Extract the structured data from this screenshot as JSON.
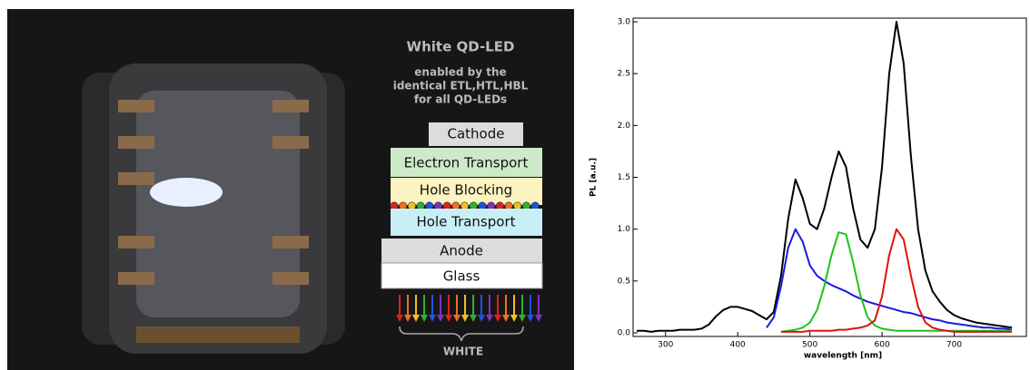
{
  "diagram": {
    "title": "White QD-LED",
    "subtitle_lines": [
      "enabled by the",
      "identical ETL,HTL,HBL",
      "for all QD-LEDs"
    ],
    "layers": [
      "Cathode",
      "Electron Transport",
      "Hole Blocking",
      "Hole Transport",
      "Anode",
      "Glass"
    ],
    "output": "WHITE"
  },
  "chart_data": {
    "type": "line",
    "xlabel": "wavelength [nm]",
    "ylabel": "PL [a.u.]",
    "x": [
      260,
      270,
      280,
      290,
      300,
      310,
      320,
      330,
      340,
      350,
      360,
      370,
      380,
      390,
      400,
      410,
      420,
      430,
      440,
      450,
      460,
      470,
      480,
      490,
      500,
      510,
      520,
      530,
      540,
      550,
      560,
      570,
      580,
      590,
      600,
      610,
      620,
      630,
      640,
      650,
      660,
      670,
      680,
      690,
      700,
      710,
      720,
      730,
      740,
      750,
      760,
      770,
      780
    ],
    "series": [
      {
        "color": "#000000",
        "values": [
          0.02,
          0.02,
          0.01,
          0.02,
          0.02,
          0.02,
          0.03,
          0.03,
          0.03,
          0.04,
          0.08,
          0.16,
          0.22,
          0.25,
          0.25,
          0.23,
          0.21,
          0.17,
          0.13,
          0.2,
          0.55,
          1.1,
          1.48,
          1.3,
          1.05,
          1.0,
          1.2,
          1.5,
          1.75,
          1.6,
          1.2,
          0.9,
          0.82,
          1.0,
          1.6,
          2.5,
          3.0,
          2.6,
          1.7,
          1.0,
          0.6,
          0.4,
          0.3,
          0.22,
          0.17,
          0.14,
          0.12,
          0.1,
          0.09,
          0.08,
          0.07,
          0.06,
          0.05
        ]
      },
      {
        "color": "#1a1adc",
        "values": [
          null,
          null,
          null,
          null,
          null,
          null,
          null,
          null,
          null,
          null,
          null,
          null,
          null,
          null,
          null,
          null,
          null,
          null,
          0.05,
          0.15,
          0.45,
          0.82,
          1.0,
          0.88,
          0.65,
          0.55,
          0.5,
          0.46,
          0.43,
          0.4,
          0.36,
          0.33,
          0.3,
          0.28,
          0.26,
          0.24,
          0.22,
          0.2,
          0.19,
          0.17,
          0.15,
          0.13,
          0.12,
          0.1,
          0.09,
          0.08,
          0.07,
          0.06,
          0.05,
          0.05,
          0.04,
          0.04,
          0.03
        ]
      },
      {
        "color": "#1cc41c",
        "values": [
          null,
          null,
          null,
          null,
          null,
          null,
          null,
          null,
          null,
          null,
          null,
          null,
          null,
          null,
          null,
          null,
          null,
          null,
          null,
          null,
          0.01,
          0.02,
          0.03,
          0.05,
          0.1,
          0.22,
          0.45,
          0.75,
          0.97,
          0.95,
          0.68,
          0.36,
          0.15,
          0.07,
          0.04,
          0.03,
          0.02,
          0.02,
          0.02,
          0.02,
          0.02,
          0.02,
          0.02,
          0.02,
          0.02,
          0.02,
          0.02,
          0.02,
          0.02,
          0.02,
          0.02,
          0.02,
          0.02
        ]
      },
      {
        "color": "#e01010",
        "values": [
          null,
          null,
          null,
          null,
          null,
          null,
          null,
          null,
          null,
          null,
          null,
          null,
          null,
          null,
          null,
          null,
          null,
          null,
          null,
          null,
          0.01,
          0.01,
          0.01,
          0.01,
          0.02,
          0.02,
          0.02,
          0.02,
          0.03,
          0.03,
          0.04,
          0.05,
          0.07,
          0.12,
          0.35,
          0.75,
          1.0,
          0.9,
          0.55,
          0.25,
          0.1,
          0.05,
          0.03,
          0.02,
          0.01,
          0.01,
          0.01,
          0.01,
          0.01,
          0.01,
          0.01,
          0.01,
          0.01
        ]
      }
    ],
    "xlim": [
      255,
      800
    ],
    "ylim": [
      0,
      3.0
    ],
    "xticks": [
      300,
      400,
      500,
      600,
      700
    ],
    "yticks": [
      {
        "value": 0,
        "label": "0.0"
      },
      0.5,
      {
        "value": 1,
        "label": "1.0"
      },
      1.5,
      {
        "value": 2,
        "label": "2.0"
      },
      2.5,
      {
        "value": 3,
        "label": "3.0"
      }
    ]
  }
}
